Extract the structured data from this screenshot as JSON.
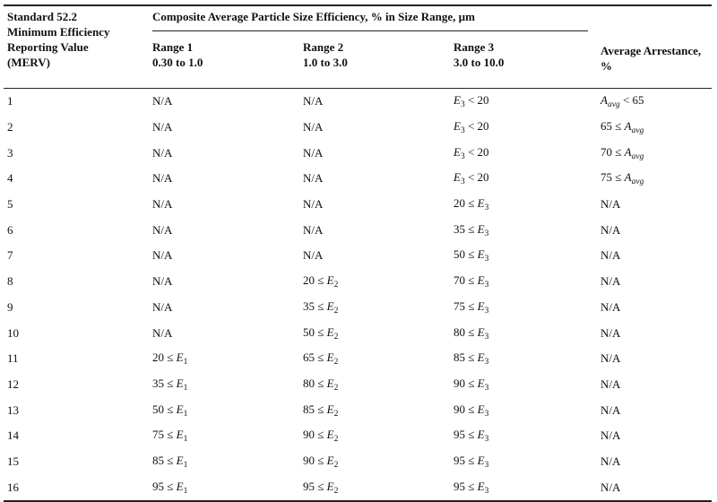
{
  "table": {
    "standard_header": [
      "Standard 52.2",
      "Minimum Efficiency",
      "Reporting Value",
      "(MERV)"
    ],
    "group_header": "Composite Average Particle Size Efficiency, % in Size Range, µm",
    "range1_header": [
      "Range 1",
      "0.30 to 1.0"
    ],
    "range2_header": [
      "Range 2",
      "1.0 to 3.0"
    ],
    "range3_header": [
      "Range 3",
      "3.0 to 10.0"
    ],
    "arrestance_header": [
      "Average Arrestance,",
      "%"
    ],
    "rows": [
      {
        "merv": "1",
        "r1": "N/A",
        "r2": "N/A",
        "r3": "E3 < 20",
        "avg": "Aavg < 65"
      },
      {
        "merv": "2",
        "r1": "N/A",
        "r2": "N/A",
        "r3": "E3 < 20",
        "avg": "65 ≤ Aavg"
      },
      {
        "merv": "3",
        "r1": "N/A",
        "r2": "N/A",
        "r3": "E3 < 20",
        "avg": "70 ≤ Aavg"
      },
      {
        "merv": "4",
        "r1": "N/A",
        "r2": "N/A",
        "r3": "E3 < 20",
        "avg": "75 ≤ Aavg"
      },
      {
        "merv": "5",
        "r1": "N/A",
        "r2": "N/A",
        "r3": "20 ≤ E3",
        "avg": "N/A"
      },
      {
        "merv": "6",
        "r1": "N/A",
        "r2": "N/A",
        "r3": "35 ≤ E3",
        "avg": "N/A"
      },
      {
        "merv": "7",
        "r1": "N/A",
        "r2": "N/A",
        "r3": "50 ≤ E3",
        "avg": "N/A"
      },
      {
        "merv": "8",
        "r1": "N/A",
        "r2": "20 ≤ E2",
        "r3": "70 ≤ E3",
        "avg": "N/A"
      },
      {
        "merv": "9",
        "r1": "N/A",
        "r2": "35 ≤ E2",
        "r3": "75 ≤ E3",
        "avg": "N/A"
      },
      {
        "merv": "10",
        "r1": "N/A",
        "r2": "50 ≤ E2",
        "r3": "80 ≤ E3",
        "avg": "N/A"
      },
      {
        "merv": "11",
        "r1": "20 ≤ E1",
        "r2": "65 ≤ E2",
        "r3": "85 ≤ E3",
        "avg": "N/A"
      },
      {
        "merv": "12",
        "r1": "35 ≤ E1",
        "r2": "80 ≤ E2",
        "r3": "90 ≤ E3",
        "avg": "N/A"
      },
      {
        "merv": "13",
        "r1": "50 ≤ E1",
        "r2": "85 ≤ E2",
        "r3": "90 ≤ E3",
        "avg": "N/A"
      },
      {
        "merv": "14",
        "r1": "75 ≤ E1",
        "r2": "90 ≤ E2",
        "r3": "95 ≤ E3",
        "avg": "N/A"
      },
      {
        "merv": "15",
        "r1": "85 ≤ E1",
        "r2": "90 ≤ E2",
        "r3": "95 ≤ E3",
        "avg": "N/A"
      },
      {
        "merv": "16",
        "r1": "95 ≤ E1",
        "r2": "95 ≤ E2",
        "r3": "95 ≤ E3",
        "avg": "N/A"
      }
    ]
  }
}
